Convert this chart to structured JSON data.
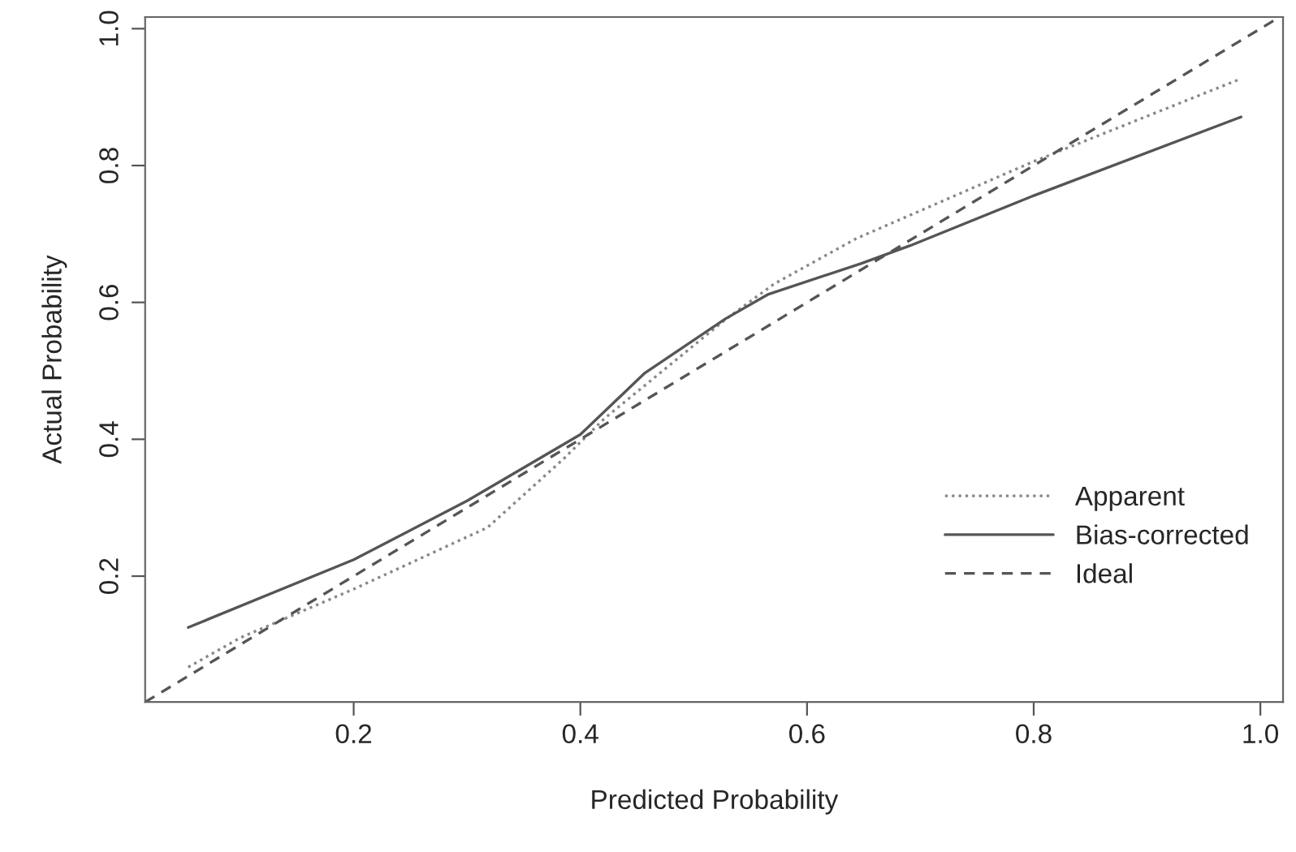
{
  "chart_data": {
    "type": "line",
    "xlabel": "Predicted Probability",
    "ylabel": "Actual Probability",
    "xlim": [
      0.016,
      1.02
    ],
    "ylim": [
      0.016,
      1.017
    ],
    "xticks": [
      0.2,
      0.4,
      0.6,
      0.8,
      {
        "value": 1,
        "label": "1.0"
      }
    ],
    "yticks": [
      0.2,
      0.4,
      0.6,
      0.8,
      {
        "value": 1,
        "label": "1.0"
      }
    ],
    "grid": false,
    "legend": "bottom right",
    "series": [
      {
        "name": "Apparent",
        "color": "#888888",
        "line_style": "dotted",
        "x": [
          0.054,
          0.1,
          0.2,
          0.318,
          0.385,
          0.421,
          0.528,
          0.571,
          0.643,
          0.8,
          0.983
        ],
        "values": [
          0.067,
          0.11,
          0.181,
          0.271,
          0.371,
          0.43,
          0.575,
          0.627,
          0.693,
          0.806,
          0.927
        ]
      },
      {
        "name": "Bias-corrected",
        "color": "#555555",
        "line_style": "solid",
        "x": [
          0.054,
          0.2,
          0.3,
          0.4,
          0.457,
          0.528,
          0.566,
          0.648,
          0.691,
          0.8,
          0.983
        ],
        "values": [
          0.125,
          0.224,
          0.31,
          0.407,
          0.497,
          0.576,
          0.612,
          0.657,
          0.683,
          0.756,
          0.871
        ]
      },
      {
        "name": "Ideal",
        "color": "#555555",
        "line_style": "dashed",
        "x": [
          0.016,
          1.017
        ],
        "values": [
          0.016,
          1.017
        ]
      }
    ]
  }
}
